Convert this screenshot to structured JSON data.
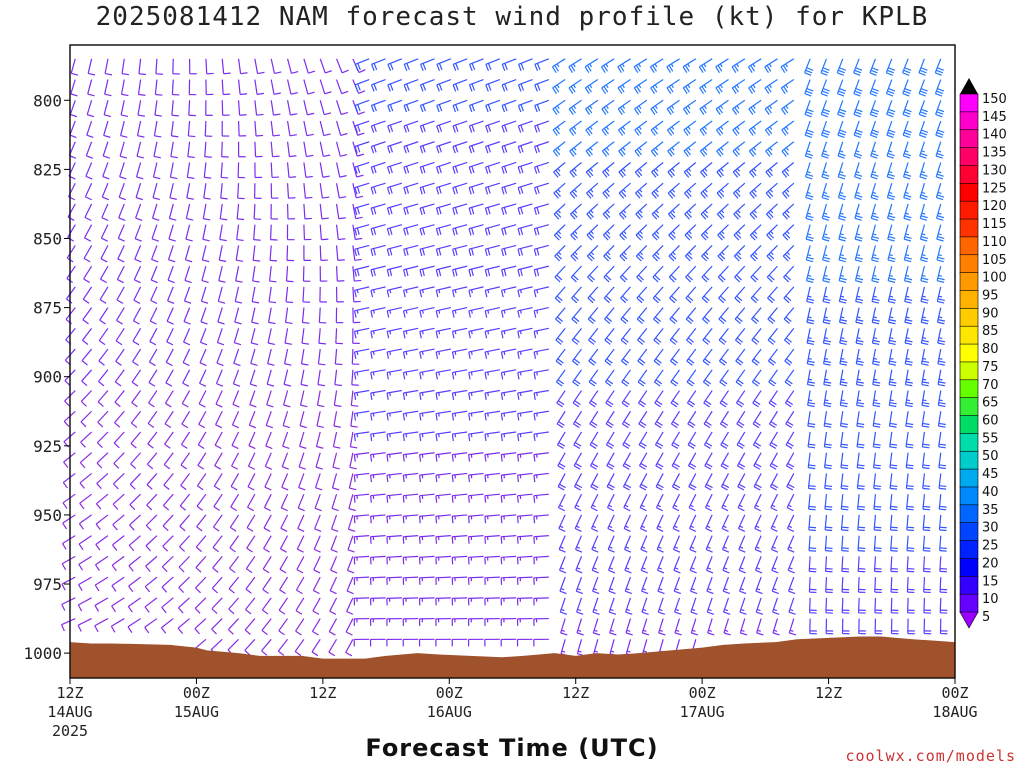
{
  "chart_data": {
    "type": "wind-barb time-height",
    "title": "2025081412 NAM forecast wind profile (kt) for KPLB",
    "xlabel": "Forecast Time (UTC)",
    "ylabel": "",
    "credit": "coolwx.com/models",
    "y_axis": {
      "ticks": [
        "800",
        "825",
        "850",
        "875",
        "900",
        "925",
        "950",
        "975",
        "1000"
      ],
      "range": [
        780,
        1009
      ],
      "inverted": true
    },
    "x_axis": {
      "ticks": [
        {
          "line1": "12Z",
          "line2": "14AUG",
          "line3": "2025"
        },
        {
          "line1": "00Z",
          "line2": "15AUG",
          "line3": ""
        },
        {
          "line1": "12Z",
          "line2": "",
          "line3": ""
        },
        {
          "line1": "00Z",
          "line2": "16AUG",
          "line3": ""
        },
        {
          "line1": "12Z",
          "line2": "",
          "line3": ""
        },
        {
          "line1": "00Z",
          "line2": "17AUG",
          "line3": ""
        },
        {
          "line1": "12Z",
          "line2": "",
          "line3": ""
        },
        {
          "line1": "00Z",
          "line2": "18AUG",
          "line3": ""
        }
      ],
      "range_hours": [
        0,
        84
      ]
    },
    "colorbar": {
      "labels": [
        "150",
        "145",
        "140",
        "135",
        "130",
        "125",
        "120",
        "115",
        "110",
        "105",
        "100",
        "95",
        "90",
        "85",
        "80",
        "75",
        "70",
        "65",
        "60",
        "55",
        "50",
        "45",
        "40",
        "35",
        "30",
        "25",
        "20",
        "15",
        "10",
        "5"
      ],
      "colors": [
        "#ff00ff",
        "#ff00cc",
        "#ff0099",
        "#ff0066",
        "#ff0033",
        "#ff0000",
        "#ff1a00",
        "#ff3300",
        "#ff6600",
        "#ff7f00",
        "#ff9900",
        "#ffb300",
        "#ffcc00",
        "#ffe600",
        "#ffff00",
        "#ccff00",
        "#66ff00",
        "#33ee33",
        "#00dd66",
        "#00ddaa",
        "#00cccc",
        "#00aaee",
        "#0088ff",
        "#0066ff",
        "#0044ff",
        "#0022ff",
        "#0000ff",
        "#3300ff",
        "#6600ff",
        "#9900ff"
      ]
    },
    "barb_color_low": "#8a2be2",
    "barb_color_mid": "#3a3aff",
    "terrain_color": "#a0522d",
    "surface_pressure_profile": [
      [
        0,
        996
      ],
      [
        2,
        996.5
      ],
      [
        4,
        996.5
      ],
      [
        9.5,
        997
      ],
      [
        12,
        998
      ],
      [
        13,
        999
      ],
      [
        16,
        1000
      ],
      [
        18,
        1001
      ],
      [
        22,
        1001
      ],
      [
        24,
        1002
      ],
      [
        28,
        1002
      ],
      [
        30,
        1001
      ],
      [
        33,
        1000
      ],
      [
        35,
        1000.5
      ],
      [
        38,
        1001
      ],
      [
        41,
        1001.5
      ],
      [
        43,
        1001
      ],
      [
        46,
        1000
      ],
      [
        48,
        1001
      ],
      [
        50,
        1000
      ],
      [
        52,
        1000.5
      ],
      [
        54,
        1000
      ],
      [
        57,
        999
      ],
      [
        60,
        998
      ],
      [
        62,
        997
      ],
      [
        64,
        996.5
      ],
      [
        67,
        996
      ],
      [
        69,
        995
      ],
      [
        72,
        994.5
      ],
      [
        75,
        994
      ],
      [
        77,
        994
      ],
      [
        80,
        995
      ],
      [
        82,
        995.5
      ],
      [
        84,
        996
      ]
    ]
  }
}
